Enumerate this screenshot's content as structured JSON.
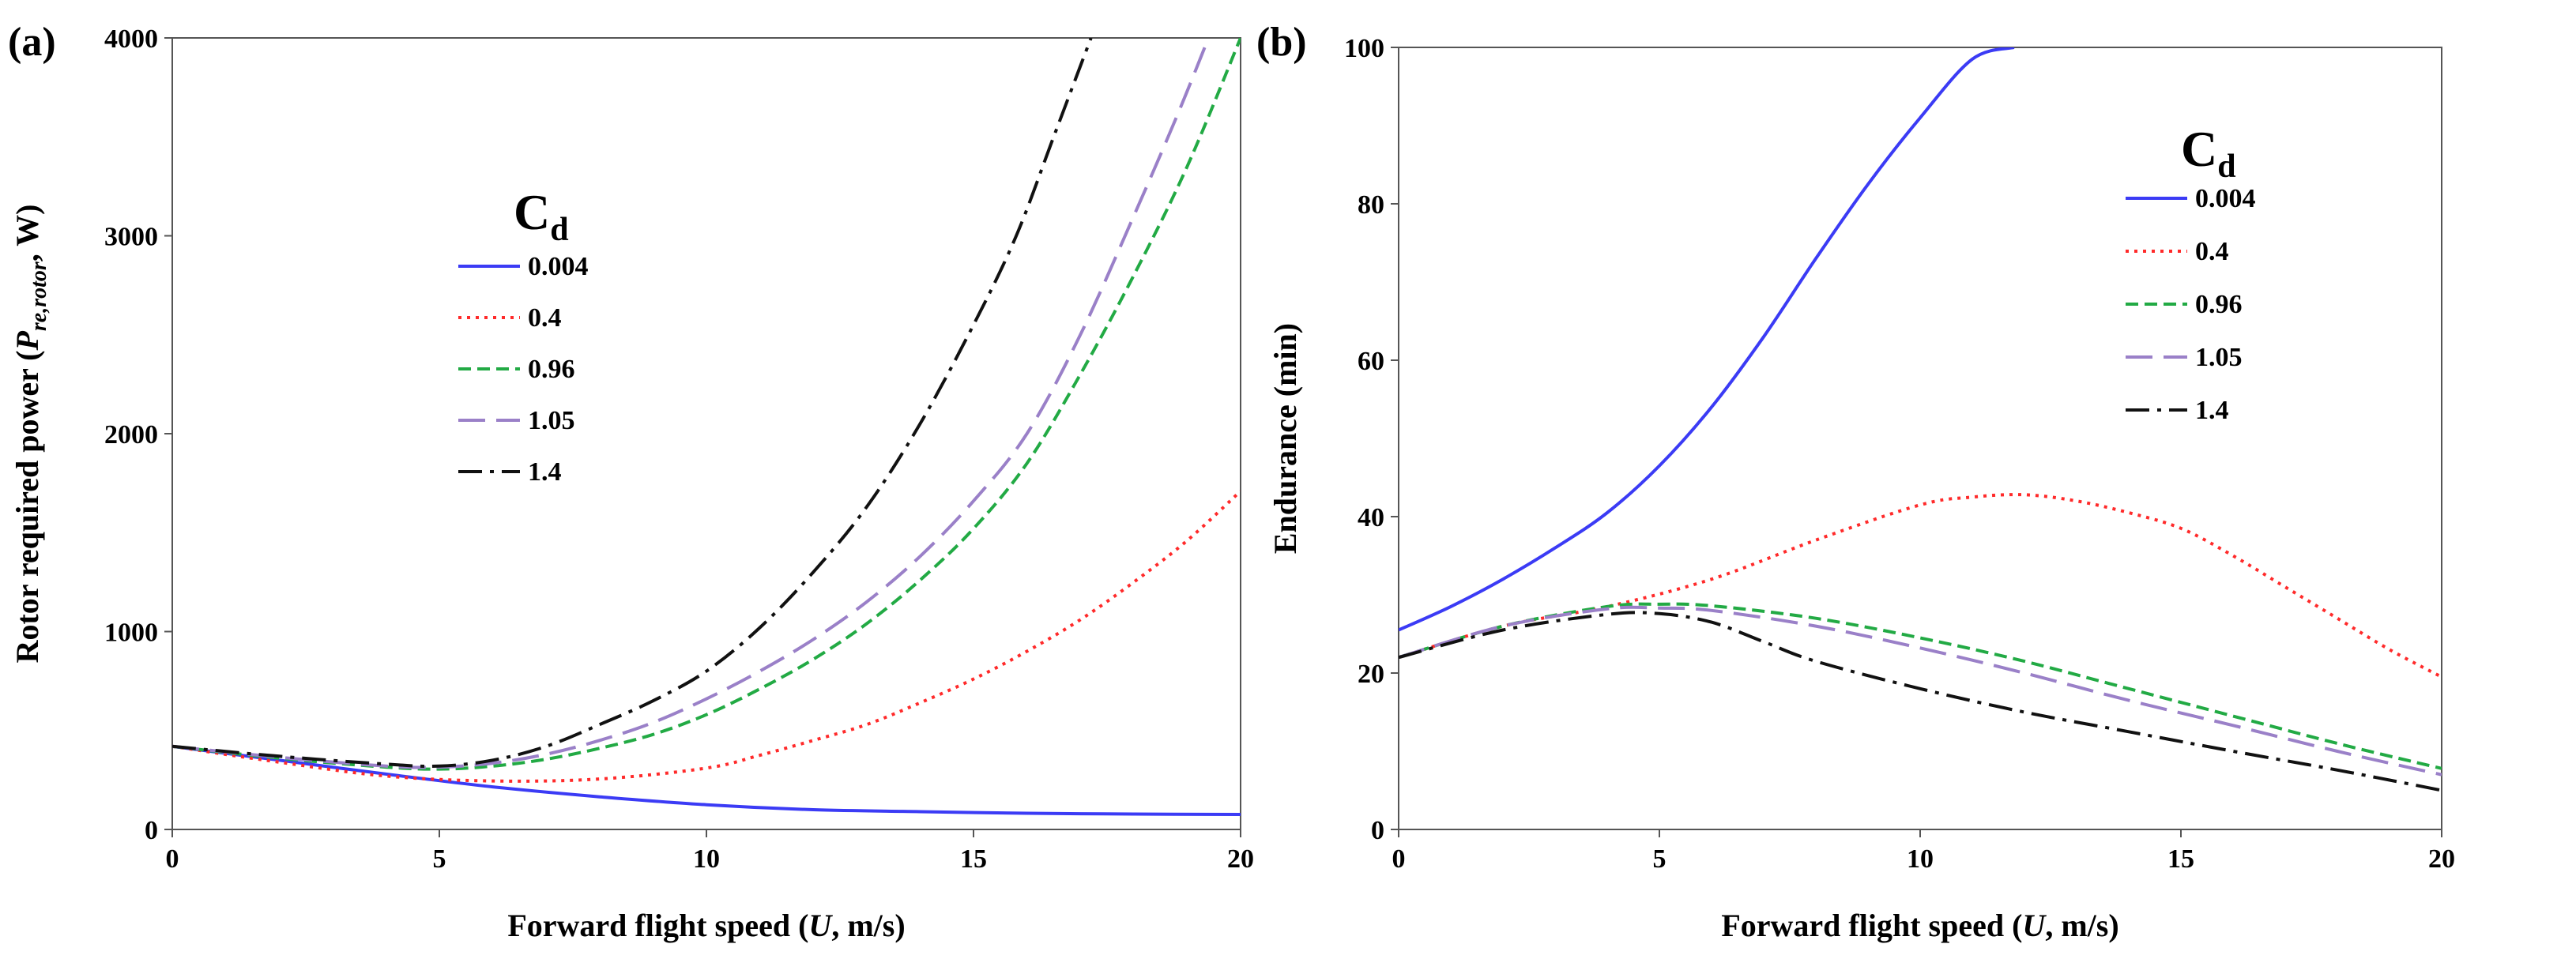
{
  "figure": {
    "panel_a_label": "(a)",
    "panel_b_label": "(b)"
  },
  "chart_data": [
    {
      "type": "line",
      "panel": "(a)",
      "title": "",
      "xlabel": {
        "prefix": "Forward flight speed (",
        "italic": "U",
        "suffix": ", m/s)"
      },
      "ylabel": {
        "prefix": "Rotor required power (",
        "symbol": "P",
        "subscript": "re,rotor",
        "suffix": ", W)"
      },
      "xlim": [
        0,
        20
      ],
      "ylim": [
        0,
        4000
      ],
      "xticks": [
        0,
        5,
        10,
        15,
        20
      ],
      "yticks": [
        0,
        1000,
        2000,
        3000,
        4000
      ],
      "legend": {
        "title": "C",
        "title_sub": "d",
        "position": "center-left"
      },
      "series": [
        {
          "name": "0.004",
          "color": "#3b3bf5",
          "dash": "solid",
          "x": [
            0,
            2,
            4,
            6,
            8,
            10,
            12,
            14,
            16,
            18,
            20
          ],
          "y": [
            420,
            350,
            280,
            215,
            165,
            125,
            100,
            90,
            82,
            78,
            76
          ]
        },
        {
          "name": "0.4",
          "color": "#ff2a2a",
          "dash": "dot",
          "x": [
            0,
            2,
            4,
            6,
            8,
            10,
            11,
            12,
            13,
            14,
            15,
            16,
            17,
            18,
            19,
            20
          ],
          "y": [
            420,
            340,
            270,
            245,
            255,
            310,
            375,
            450,
            530,
            640,
            760,
            900,
            1060,
            1250,
            1460,
            1710
          ]
        },
        {
          "name": "0.96",
          "color": "#22aa44",
          "dash": "dash",
          "x": [
            0,
            2,
            4,
            5,
            6,
            7,
            8,
            9,
            10,
            11,
            12,
            13,
            14,
            15,
            16,
            17,
            18,
            19,
            20
          ],
          "y": [
            420,
            360,
            315,
            305,
            320,
            355,
            410,
            480,
            580,
            710,
            860,
            1040,
            1260,
            1520,
            1850,
            2300,
            2800,
            3350,
            4000
          ]
        },
        {
          "name": "1.05",
          "color": "#9a80c8",
          "dash": "longdash",
          "x": [
            0,
            2,
            4,
            5,
            6,
            7,
            8,
            9,
            10,
            11,
            12,
            13,
            14,
            15,
            16,
            17,
            18,
            18.8,
            19.4
          ],
          "y": [
            420,
            365,
            320,
            315,
            335,
            380,
            450,
            540,
            660,
            800,
            960,
            1150,
            1380,
            1660,
            2000,
            2500,
            3100,
            3600,
            4000
          ]
        },
        {
          "name": "1.4",
          "color": "#111111",
          "dash": "dashdot",
          "x": [
            0,
            2,
            4,
            5,
            6,
            7,
            8,
            9,
            10,
            11,
            12,
            13,
            14,
            15,
            15.8,
            16.5,
            17.2
          ],
          "y": [
            420,
            370,
            330,
            320,
            350,
            420,
            530,
            650,
            800,
            1020,
            1300,
            1630,
            2050,
            2550,
            3000,
            3500,
            4000
          ]
        }
      ]
    },
    {
      "type": "line",
      "panel": "(b)",
      "title": "",
      "xlabel": {
        "prefix": "Forward flight speed (",
        "italic": "U",
        "suffix": ", m/s)"
      },
      "ylabel": {
        "text": "Endurance (min)"
      },
      "xlim": [
        0,
        20
      ],
      "ylim": [
        0,
        100
      ],
      "xticks": [
        0,
        5,
        10,
        15,
        20
      ],
      "yticks": [
        0,
        20,
        40,
        60,
        80,
        100
      ],
      "legend": {
        "title": "C",
        "title_sub": "d",
        "position": "top-right"
      },
      "series": [
        {
          "name": "0.004",
          "color": "#3b3bf5",
          "dash": "solid",
          "x": [
            0,
            1,
            2,
            3,
            4,
            5,
            6,
            7,
            8,
            9,
            10,
            11,
            11.8
          ],
          "y": [
            25.5,
            28.5,
            32,
            36,
            40.5,
            46.5,
            54,
            63,
            73,
            82.5,
            91,
            98.5,
            100
          ]
        },
        {
          "name": "0.4",
          "color": "#ff2a2a",
          "dash": "dot",
          "x": [
            0,
            2,
            4,
            6,
            8,
            10,
            11,
            12,
            13,
            14,
            15,
            16,
            17,
            18,
            19,
            20
          ],
          "y": [
            22,
            26,
            28.5,
            32,
            37,
            41.5,
            42.5,
            42.8,
            42,
            40.5,
            38.5,
            35,
            31,
            27,
            23,
            19.5
          ]
        },
        {
          "name": "0.96",
          "color": "#22aa44",
          "dash": "dash",
          "x": [
            0,
            2,
            4,
            5,
            6,
            8,
            10,
            12,
            14,
            16,
            18,
            20
          ],
          "y": [
            22,
            26,
            28.5,
            28.8,
            28.6,
            27,
            24.5,
            21.5,
            18,
            14.5,
            11,
            7.8
          ]
        },
        {
          "name": "1.05",
          "color": "#9a80c8",
          "dash": "longdash",
          "x": [
            0,
            2,
            4,
            5,
            6,
            8,
            10,
            12,
            14,
            16,
            18,
            20
          ],
          "y": [
            22,
            26,
            28.2,
            28.3,
            28,
            26,
            23.2,
            20,
            16.5,
            13.3,
            10,
            7
          ]
        },
        {
          "name": "1.4",
          "color": "#111111",
          "dash": "dashdot",
          "x": [
            0,
            2,
            4,
            5,
            6,
            7,
            8,
            10,
            12,
            14,
            16,
            18,
            20
          ],
          "y": [
            22,
            25.5,
            27.5,
            27.6,
            26.5,
            24,
            21.5,
            18,
            15,
            12.5,
            10,
            7.6,
            5
          ]
        }
      ]
    }
  ]
}
